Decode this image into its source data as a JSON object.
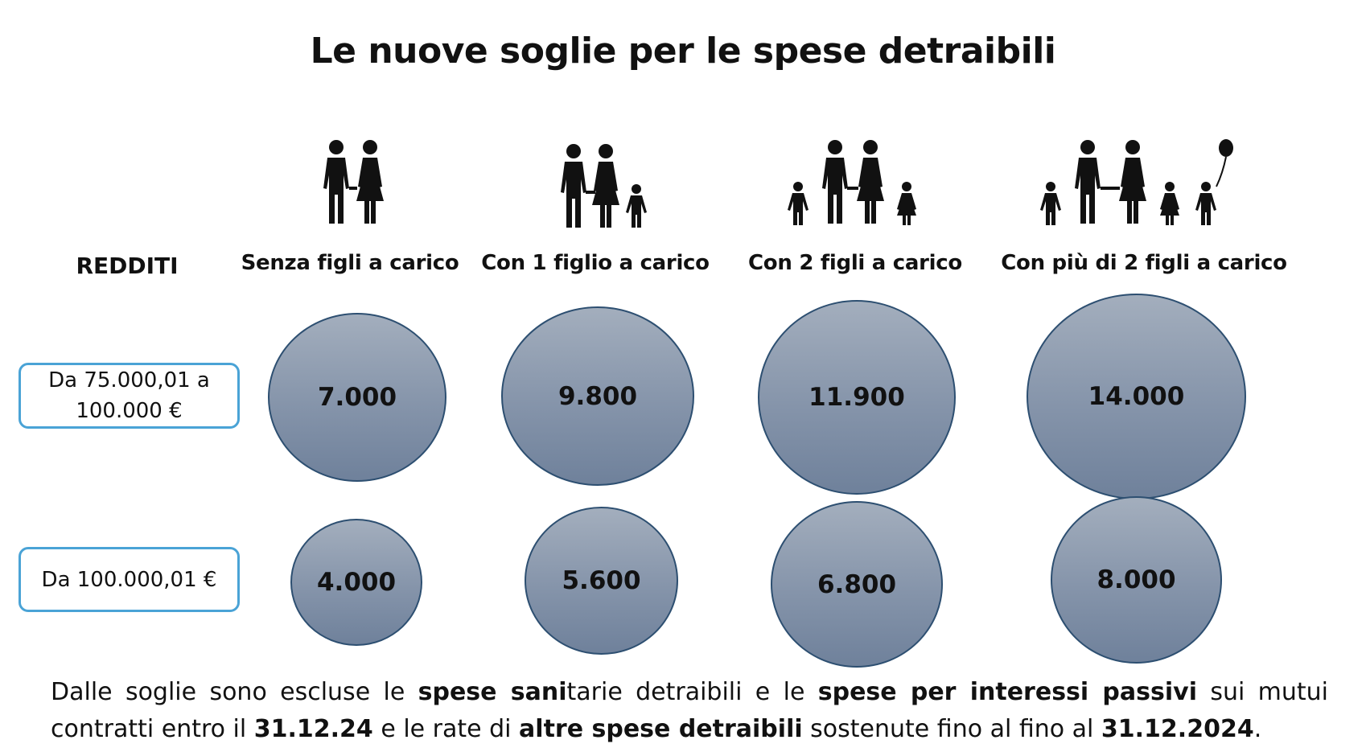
{
  "title": "Le nuove soglie per le spese detraibili",
  "row_header": "REDDITI",
  "columns": [
    {
      "label": "Senza figli a carico",
      "icon": "couple-icon"
    },
    {
      "label": "Con 1 figlio a carico",
      "icon": "family-1-child-icon"
    },
    {
      "label": "Con 2 figli a carico",
      "icon": "family-2-children-icon"
    },
    {
      "label": "Con più di 2 figli a carico",
      "icon": "family-3-children-icon"
    }
  ],
  "rows": [
    {
      "income_line1": "Da 75.000,01 a",
      "income_line2": "100.000 €",
      "values": [
        "7.000",
        "9.800",
        "11.900",
        "14.000"
      ]
    },
    {
      "income_line1": "Da 100.000,01 €",
      "values": [
        "4.000",
        "5.600",
        "6.800",
        "8.000"
      ]
    }
  ],
  "note": {
    "p1": "Dalle soglie sono escluse le ",
    "b1": "spese sani",
    "p2": "tarie detraibili e le ",
    "b2": "spese per interessi passivi",
    "p3": " sui mutui contratti entro il ",
    "b3": "31.12.24",
    "p4": " e le rate di ",
    "b4": "altre spese detraibili",
    "p5": " sostenute fino al fino al ",
    "b5": "31.12.2024",
    "p6": "."
  },
  "colors": {
    "box_border": "#4aa3d6",
    "bubble_border": "#2d4f71",
    "bubble_top": "#a3aebd",
    "bubble_bottom": "#6f819b"
  }
}
